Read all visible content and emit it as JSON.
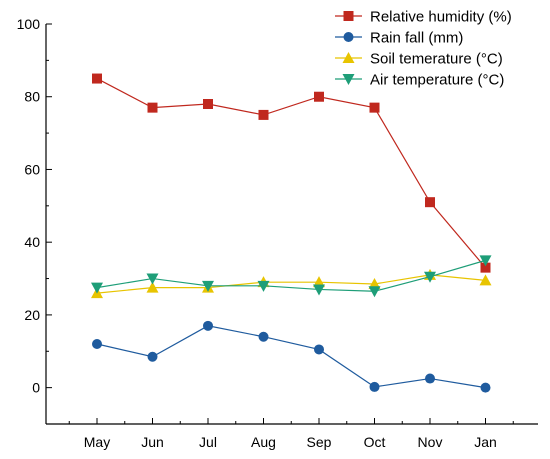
{
  "chart_data": {
    "type": "line",
    "title": "",
    "xlabel": "",
    "ylabel": "",
    "categories": [
      "May",
      "Jun",
      "Jul",
      "Aug",
      "Sep",
      "Oct",
      "Nov",
      "Jan"
    ],
    "ylim": [
      -10,
      100
    ],
    "yticks": [
      0,
      20,
      40,
      60,
      80,
      100
    ],
    "grid": false,
    "legend_position": "top-right",
    "series": [
      {
        "name": "Relative humidity (%)",
        "values": [
          85,
          77,
          78,
          75,
          80,
          77,
          51,
          33
        ],
        "color": "#c0281e",
        "marker": "square"
      },
      {
        "name": "Rain fall (mm)",
        "values": [
          12,
          8.5,
          17,
          14,
          10.5,
          0.2,
          2.5,
          0
        ],
        "color": "#1f5b9e",
        "marker": "circle"
      },
      {
        "name": "Soil temerature (°C)",
        "values": [
          26,
          27.5,
          27.5,
          29,
          29,
          28.5,
          31,
          29.5
        ],
        "color": "#e8c400",
        "marker": "triangle-up"
      },
      {
        "name": "Air temperature (°C)",
        "values": [
          27.5,
          30,
          28,
          28,
          27,
          26.5,
          30.5,
          35
        ],
        "color": "#1e9e78",
        "marker": "triangle-down"
      }
    ]
  }
}
